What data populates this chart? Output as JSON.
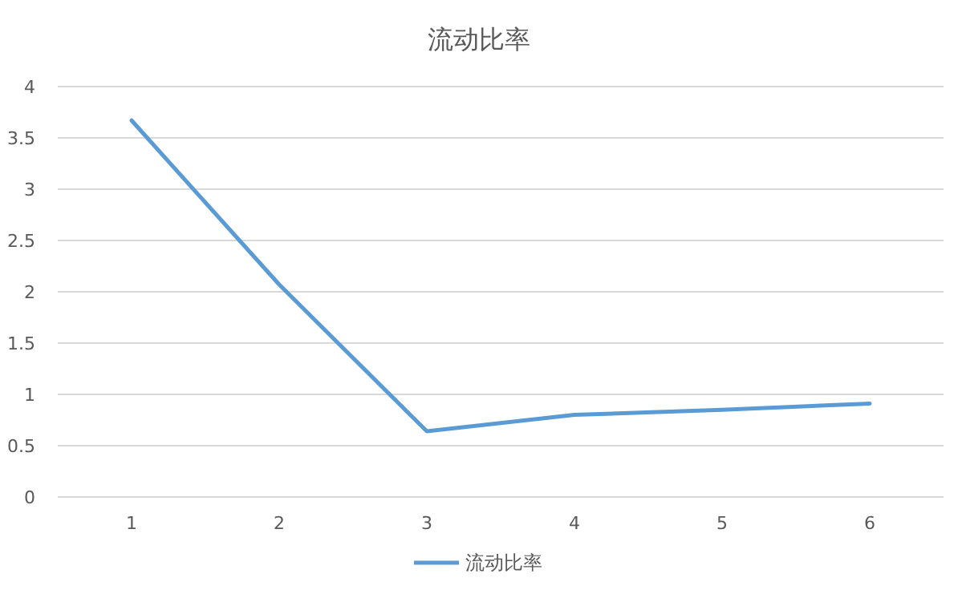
{
  "chart_data": {
    "type": "line",
    "title": "流动比率",
    "categories": [
      "1",
      "2",
      "3",
      "4",
      "5",
      "6"
    ],
    "series": [
      {
        "name": "流动比率",
        "color": "#5b9bd5",
        "values": [
          3.67,
          2.07,
          0.64,
          0.8,
          0.85,
          0.91
        ]
      }
    ],
    "ylim": [
      0,
      4
    ],
    "yticks": [
      0,
      0.5,
      1,
      1.5,
      2,
      2.5,
      3,
      3.5,
      4
    ],
    "grid": "y",
    "legend": "bottom",
    "marker": "none",
    "line_style": "solid"
  }
}
